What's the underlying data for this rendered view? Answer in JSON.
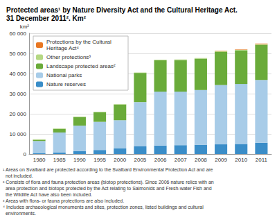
{
  "chart_data": {
    "type": "bar",
    "title": "Protected areas¹ by Nature Diversity Act and the Cultural Heritage Act.\n31 December 2011². Km²",
    "y_label": "km²",
    "categories": [
      "1980",
      "1985",
      "1990",
      "1995",
      "2000",
      "2005",
      "2006",
      "2007",
      "2008",
      "2009",
      "2010",
      "2011"
    ],
    "stacked": true,
    "series": [
      {
        "name": "Nature reserves",
        "color": "#3a8dc8",
        "values": [
          500,
          700,
          1400,
          2000,
          2800,
          3800,
          4200,
          4400,
          4600,
          4800,
          5000,
          5600
        ]
      },
      {
        "name": "National parks",
        "color": "#a8cce8",
        "values": [
          6000,
          10000,
          12700,
          14000,
          14000,
          22000,
          26800,
          26600,
          27200,
          29500,
          29800,
          31200
        ]
      },
      {
        "name": "Landscape protected areas²",
        "color": "#6aab3a",
        "values": [
          600,
          1800,
          4300,
          4800,
          7800,
          14500,
          15600,
          15700,
          15600,
          16400,
          16600,
          17400
        ]
      },
      {
        "name": "Other protections³",
        "color": "#b5d884",
        "values": [
          200,
          200,
          200,
          200,
          200,
          200,
          300,
          300,
          300,
          400,
          400,
          400
        ]
      },
      {
        "name": "Protections by the Cultural Heritage Act⁴",
        "color": "#e87722",
        "values": [
          0,
          0,
          0,
          0,
          0,
          0,
          0,
          0,
          0,
          200,
          200,
          300
        ]
      }
    ],
    "ylim": [
      0,
      60000
    ],
    "yticks": [
      0,
      {
        "value": 10000,
        "label": "10 000"
      },
      {
        "value": 20000,
        "label": "20 000"
      },
      {
        "value": 30000,
        "label": "30 000"
      },
      {
        "value": 40000,
        "label": "40 000"
      },
      {
        "value": 50000,
        "label": "50 000"
      },
      {
        "value": 60000,
        "label": "60 000"
      }
    ],
    "grid": true,
    "legend": "top-left",
    "footnotes": [
      "¹ Areas on Svalbard are protected according to the Svalbard Environmental Protection Act and are",
      "  not included.",
      "² Consists of flora and fauna protection areas (biotop protections). Since 2006 nature relics with an",
      "  area protection and biotops protected by the Act relating to Salmonids and Fresh-water Fish and",
      "  the Wildlife Act have also been included.",
      "³ Areas with flora- or fauna protections are also included.",
      "⁴ Includes archaeological monuments and sites, protection zones, listed buildings and cultural",
      "  environments."
    ]
  }
}
